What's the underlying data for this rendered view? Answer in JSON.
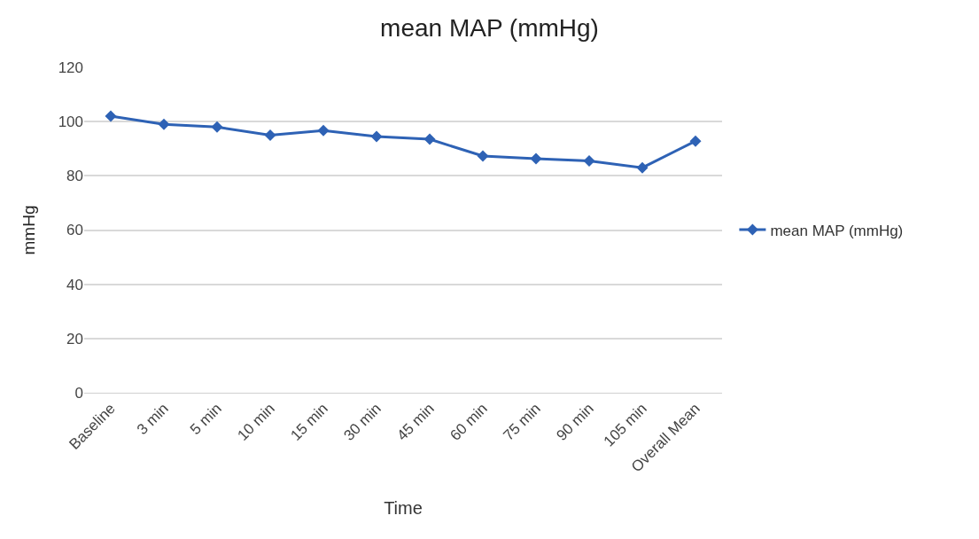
{
  "chart_data": {
    "type": "line",
    "title": "mean MAP (mmHg)",
    "xlabel": "Time",
    "ylabel": "mmHg",
    "categories": [
      "Baseline",
      "3 min",
      "5 min",
      "10 min",
      "15 min",
      "30 min",
      "45 min",
      "60 min",
      "75 min",
      "90 min",
      "105 min",
      "Overall Mean"
    ],
    "series": [
      {
        "name": "mean MAP (mmHg)",
        "color": "#2e62b5",
        "values": [
          102,
          99,
          98,
          95,
          96.7,
          94.5,
          93.5,
          87.3,
          86.3,
          85.5,
          83,
          92.8
        ]
      }
    ],
    "ylim": [
      0,
      120
    ],
    "yticks": [
      0,
      20,
      40,
      60,
      80,
      100,
      120
    ],
    "grid": "y",
    "legend": "right",
    "marker": "diamond",
    "line_style": "solid"
  }
}
